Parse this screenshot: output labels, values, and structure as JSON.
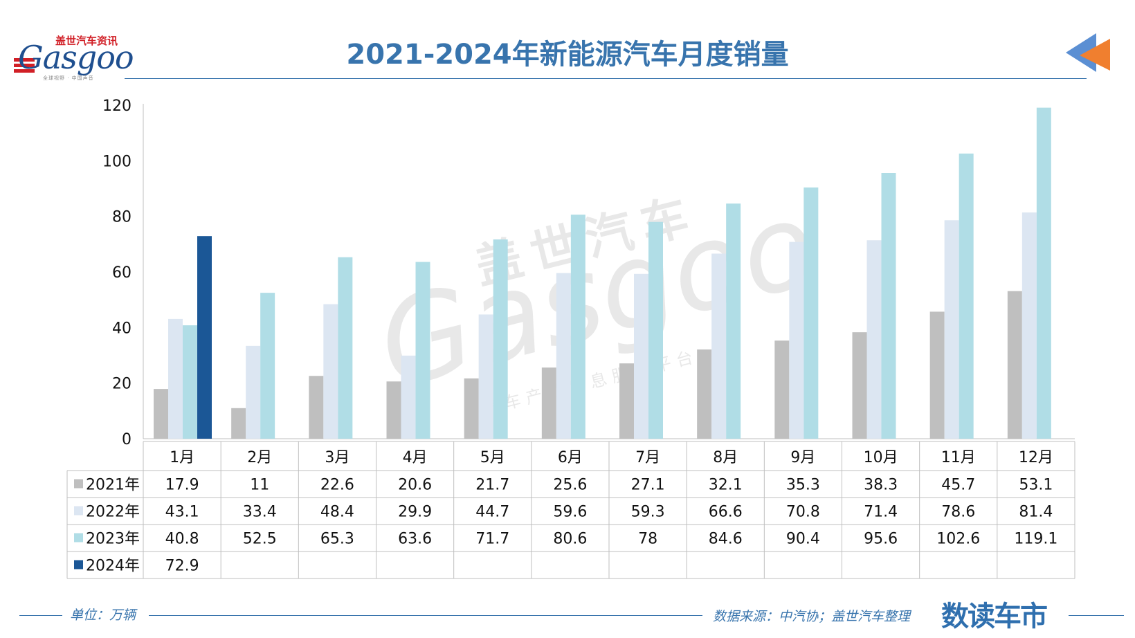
{
  "logo": {
    "brand_cn": "盖世汽车资讯",
    "brand_en": "Gasgoo",
    "tagline": "全球视野 · 中国声音"
  },
  "header": {
    "title": "2021-2024年新能源汽车月度销量"
  },
  "footer": {
    "unit": "单位：万辆",
    "source": "数据来源：中汽协；盖世汽车整理",
    "brand": "数读车市"
  },
  "watermark": {
    "cn": "盖世汽车",
    "en": "Gasgoo",
    "sub": "汽车产业信息服务平台"
  },
  "colors": {
    "title": "#3874ad",
    "series_2021": "#bfbfbf",
    "series_2022": "#dce6f2",
    "series_2023": "#b0dde6",
    "series_2024": "#1b5796",
    "arrow_orange": "#f07f2f",
    "arrow_blue": "#5b8fd3"
  },
  "chart_data": {
    "type": "bar",
    "title": "2021-2024年新能源汽车月度销量",
    "categories": [
      "1月",
      "2月",
      "3月",
      "4月",
      "5月",
      "6月",
      "7月",
      "8月",
      "9月",
      "10月",
      "11月",
      "12月"
    ],
    "series": [
      {
        "name": "2021年",
        "color": "#bfbfbf",
        "values": [
          17.9,
          11,
          22.6,
          20.6,
          21.7,
          25.6,
          27.1,
          32.1,
          35.3,
          38.3,
          45.7,
          53.1
        ]
      },
      {
        "name": "2022年",
        "color": "#dce6f2",
        "values": [
          43.1,
          33.4,
          48.4,
          29.9,
          44.7,
          59.6,
          59.3,
          66.6,
          70.8,
          71.4,
          78.6,
          81.4
        ]
      },
      {
        "name": "2023年",
        "color": "#b0dde6",
        "values": [
          40.8,
          52.5,
          65.3,
          63.6,
          71.7,
          80.6,
          78,
          84.6,
          90.4,
          95.6,
          102.6,
          119.1
        ]
      },
      {
        "name": "2024年",
        "color": "#1b5796",
        "values": [
          72.9,
          null,
          null,
          null,
          null,
          null,
          null,
          null,
          null,
          null,
          null,
          null
        ]
      }
    ],
    "yticks": [
      0,
      20,
      40,
      60,
      80,
      100,
      120
    ],
    "ylim": [
      0,
      120
    ],
    "grid": false,
    "legend": "data-table"
  }
}
